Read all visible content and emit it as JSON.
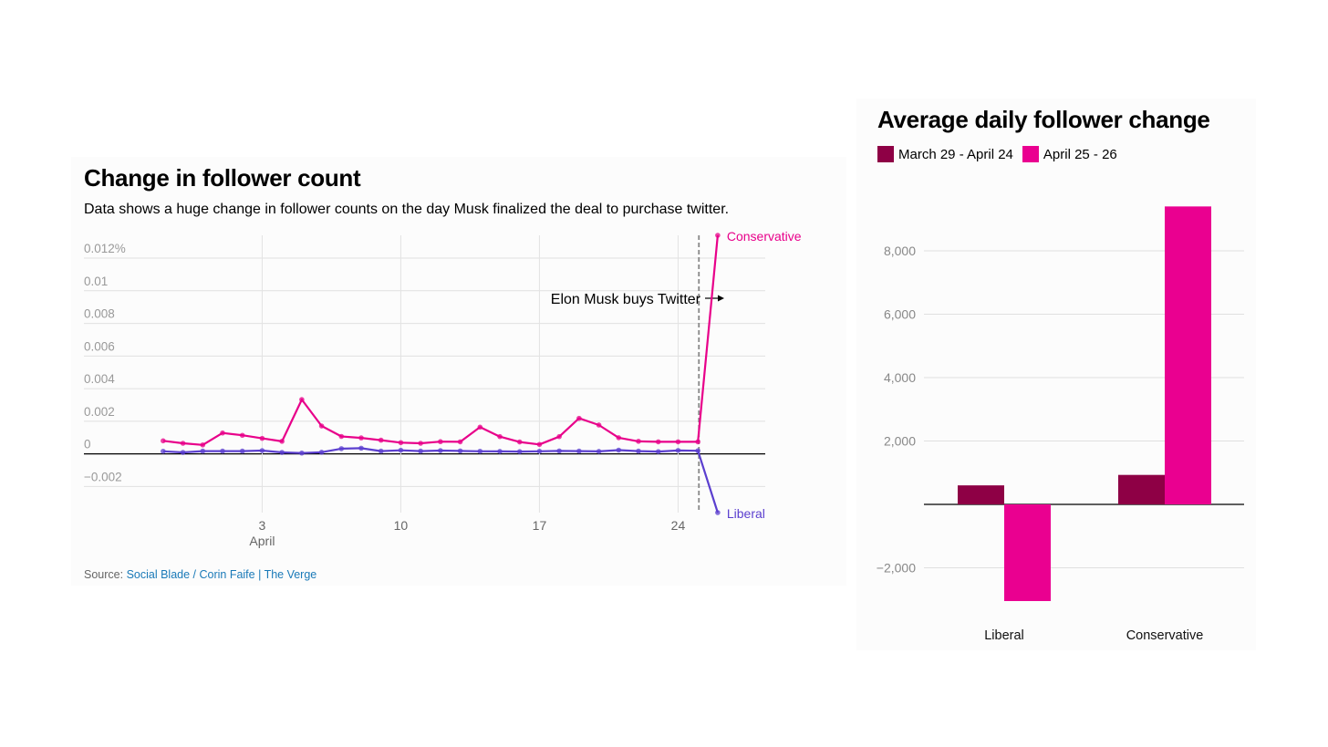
{
  "left_chart": {
    "title": "Change in follower count",
    "subtitle": "Data shows a huge change in follower counts on the day Musk finalized the deal to purchase twitter.",
    "source_prefix": "Source: ",
    "source_link": "Social Blade / Corin Faife | The Verge",
    "annotation": "Elon Musk buys Twitter"
  },
  "right_chart": {
    "title": "Average daily follower change"
  },
  "colors": {
    "conservative": "#e8008a",
    "liberal": "#5b3fcf",
    "bar_period1": "#8e0045",
    "bar_period2": "#ea0090"
  },
  "chart_data": [
    {
      "type": "line",
      "title": "Change in follower count",
      "x_unit": "day of April 2022",
      "x": [
        -2,
        -1,
        0,
        1,
        2,
        3,
        4,
        5,
        6,
        7,
        8,
        9,
        10,
        11,
        12,
        13,
        14,
        15,
        16,
        17,
        18,
        19,
        20,
        21,
        22,
        23,
        24,
        25,
        26
      ],
      "x_ticks": [
        {
          "value": 3,
          "label": "3",
          "sublabel": "April"
        },
        {
          "value": 10,
          "label": "10",
          "sublabel": ""
        },
        {
          "value": 17,
          "label": "17",
          "sublabel": ""
        },
        {
          "value": 24,
          "label": "24",
          "sublabel": ""
        }
      ],
      "y_ticks": [
        {
          "value": -0.002,
          "label": "−0.002"
        },
        {
          "value": 0,
          "label": "0"
        },
        {
          "value": 0.002,
          "label": "0.002"
        },
        {
          "value": 0.004,
          "label": "0.004"
        },
        {
          "value": 0.006,
          "label": "0.006"
        },
        {
          "value": 0.008,
          "label": "0.008"
        },
        {
          "value": 0.01,
          "label": "0.01"
        },
        {
          "value": 0.012,
          "label": "0.012%"
        }
      ],
      "ylim": [
        -0.0036,
        0.0134
      ],
      "xlim": [
        -6,
        28.4
      ],
      "event_x": 25.05,
      "series": [
        {
          "name": "Conservative",
          "color_key": "conservative",
          "values": [
            0.0008,
            0.00065,
            0.00055,
            0.00128,
            0.00114,
            0.00095,
            0.00077,
            0.00333,
            0.00171,
            0.00107,
            0.00098,
            0.00084,
            0.00069,
            0.00065,
            0.00075,
            0.00074,
            0.00164,
            0.00106,
            0.00073,
            0.00058,
            0.00106,
            0.00218,
            0.00177,
            0.00099,
            0.00077,
            0.00074,
            0.00074,
            0.00074,
            0.0134
          ]
        },
        {
          "name": "Liberal",
          "color_key": "liberal",
          "values": [
            0.00016,
            9e-05,
            0.00017,
            0.00017,
            0.00017,
            0.0002,
            9e-05,
            5e-05,
            0.0001,
            0.00032,
            0.00035,
            0.00017,
            0.00022,
            0.00017,
            0.0002,
            0.00018,
            0.00016,
            0.00015,
            0.00014,
            0.00016,
            0.00018,
            0.00017,
            0.00015,
            0.00023,
            0.00017,
            0.00014,
            0.00021,
            0.00019,
            -0.0036
          ]
        }
      ]
    },
    {
      "type": "bar",
      "title": "Average daily follower change",
      "categories": [
        "Liberal",
        "Conservative"
      ],
      "series": [
        {
          "name": "March 29 - April 24",
          "color_key": "bar_period1",
          "values": [
            600,
            930
          ]
        },
        {
          "name": "April 25 - 26",
          "color_key": "bar_period2",
          "values": [
            -3050,
            9400
          ]
        }
      ],
      "y_ticks": [
        {
          "value": -2000,
          "label": "−2,000"
        },
        {
          "value": 2000,
          "label": "2,000"
        },
        {
          "value": 4000,
          "label": "4,000"
        },
        {
          "value": 6000,
          "label": "6,000"
        },
        {
          "value": 8000,
          "label": "8,000"
        }
      ],
      "ylim": [
        -3050,
        9400
      ]
    }
  ]
}
